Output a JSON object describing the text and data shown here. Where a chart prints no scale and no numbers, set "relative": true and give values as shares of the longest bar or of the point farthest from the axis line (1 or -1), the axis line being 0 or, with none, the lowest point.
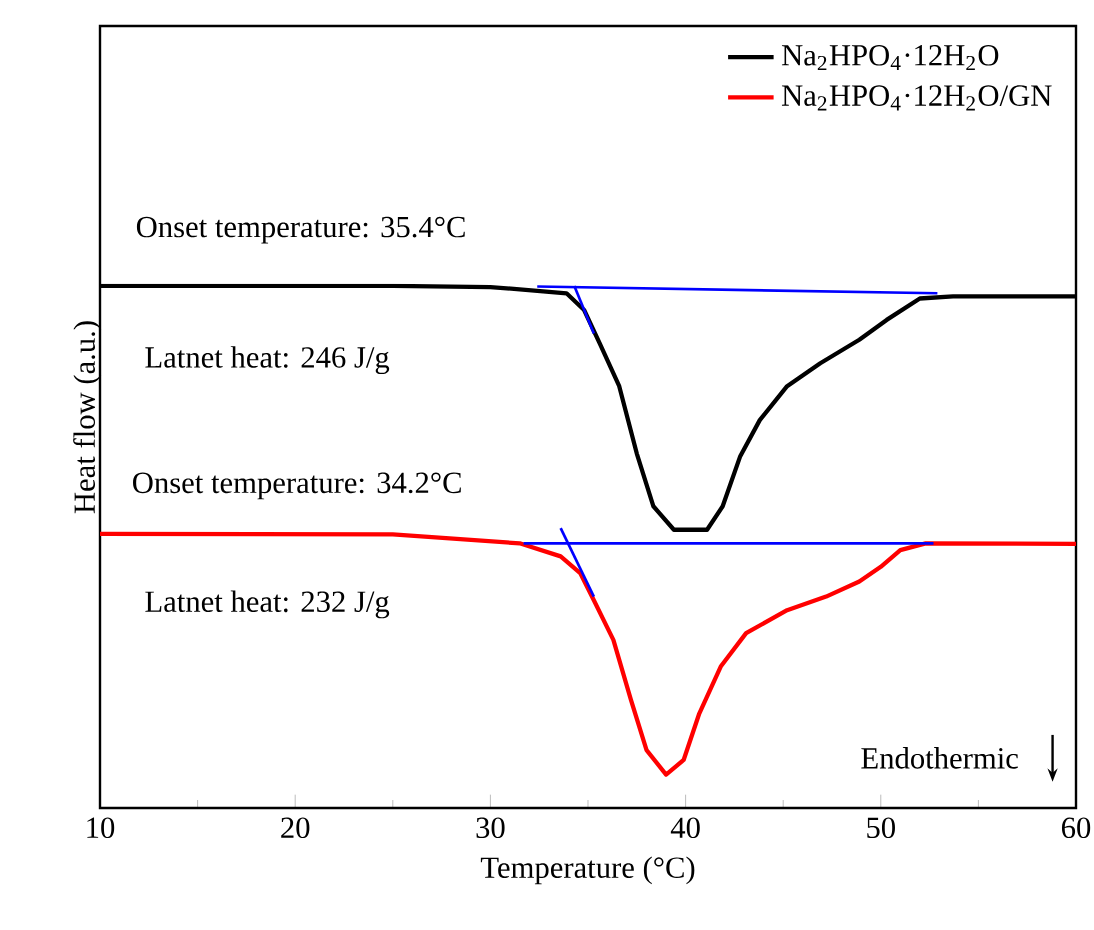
{
  "chart_data": {
    "type": "line",
    "relative": true,
    "xlabel": "Temperature (°C)",
    "ylabel": "Heat flow (a.u.)",
    "xlim": [
      10,
      60
    ],
    "xticks": [
      10,
      20,
      30,
      40,
      50,
      60
    ],
    "tick_labels": "x",
    "legend": "top right",
    "annotations": [
      "Onset temperature: 35.4°C",
      "Latnet heat: 246 J/g",
      "Onset temperature: 34.2°C",
      "Latnet heat: 232 J/g",
      "Endothermic"
    ],
    "series": [
      {
        "name": "Na$_{2}$HPO$_{4}$·12H$_{2}$O",
        "color": "#000000",
        "x": [
          10,
          25,
          30,
          33.9,
          34.8,
          35.6,
          36.6,
          37.5,
          38.35,
          39.4,
          41.1,
          41.9,
          42.8,
          43.8,
          45.2,
          46.9,
          48.9,
          50.3,
          52.0,
          53.7,
          60
        ],
        "values": [
          1.0,
          1.0,
          0.998,
          0.986,
          0.954,
          0.89,
          0.808,
          0.679,
          0.578,
          0.533,
          0.533,
          0.578,
          0.674,
          0.743,
          0.808,
          0.852,
          0.897,
          0.935,
          0.976,
          0.98,
          0.98
        ]
      },
      {
        "name": "Na$_{2}$HPO$_{4}$·12H$_{2}$O/GN",
        "color": "#ff0000",
        "x": [
          10,
          25,
          31.5,
          33.6,
          34.6,
          35.3,
          36.3,
          37.2,
          38.0,
          39.0,
          39.9,
          40.7,
          41.8,
          43.1,
          45.2,
          47.2,
          48.9,
          50.0,
          51.0,
          52.3,
          60
        ],
        "values": [
          0.525,
          0.524,
          0.507,
          0.482,
          0.45,
          0.398,
          0.322,
          0.207,
          0.111,
          0.064,
          0.092,
          0.181,
          0.271,
          0.335,
          0.379,
          0.405,
          0.434,
          0.462,
          0.494,
          0.507,
          0.506
        ]
      },
      {
        "color": "#0000ff",
        "x": [
          32.4,
          52.9
        ],
        "values": [
          0.999,
          0.986
        ]
      },
      {
        "color": "#0000ff",
        "x": [
          34.3,
          35.3
        ],
        "values": [
          1.0,
          0.909
        ]
      },
      {
        "color": "#0000ff",
        "x": [
          31.7,
          52.7
        ],
        "values": [
          0.507,
          0.507
        ]
      },
      {
        "color": "#0000ff",
        "x": [
          33.6,
          35.3
        ],
        "values": [
          0.536,
          0.405
        ]
      }
    ]
  }
}
